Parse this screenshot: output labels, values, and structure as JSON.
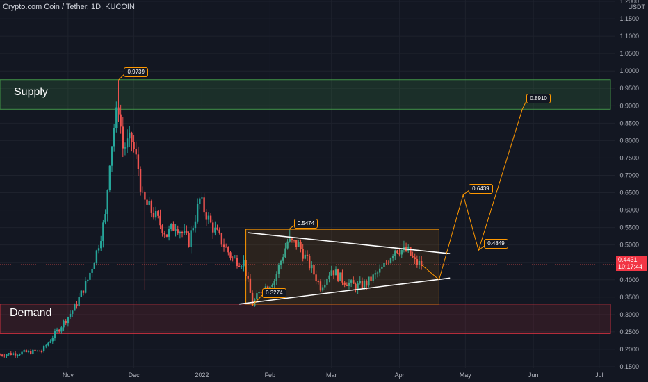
{
  "header": {
    "title": "Crypto.com Coin / Tether, 1D, KUCOIN"
  },
  "axis": {
    "unit": "USDT"
  },
  "zones": {
    "supply_label": "Supply",
    "demand_label": "Demand"
  },
  "price_badge": {
    "price": "0.4431",
    "countdown": "10:17:44",
    "color": "#f23645"
  },
  "colors": {
    "up": "#26a69a",
    "down": "#ef5350",
    "annotation": "#ff9800",
    "supply": "#4caf50",
    "demand": "#f23645",
    "background": "#131722"
  },
  "chart_data": {
    "type": "candlestick",
    "title": "Crypto.com Coin / Tether, 1D, KUCOIN",
    "y_unit": "USDT",
    "ylim": [
      0.13,
      1.22
    ],
    "y_ticks": [
      "1.2000",
      "1.1500",
      "1.1000",
      "1.0500",
      "1.0000",
      "0.9500",
      "0.9000",
      "0.8500",
      "0.8000",
      "0.7500",
      "0.7000",
      "0.6500",
      "0.6000",
      "0.5500",
      "0.5000",
      "0.4500",
      "0.4000",
      "0.3500",
      "0.3000",
      "0.2500",
      "0.2000",
      "0.1500"
    ],
    "x_ticks": [
      "Nov",
      "Dec",
      "2022",
      "Feb",
      "Mar",
      "Apr",
      "May",
      "Jun",
      "Jul"
    ],
    "grid": true,
    "price_path": [
      [
        "2021-10-01",
        0.185
      ],
      [
        "2021-10-20",
        0.195
      ],
      [
        "2021-10-28",
        0.26
      ],
      [
        "2021-11-04",
        0.32
      ],
      [
        "2021-11-10",
        0.4
      ],
      [
        "2021-11-14",
        0.48
      ],
      [
        "2021-11-18",
        0.58
      ],
      [
        "2021-11-20",
        0.75
      ],
      [
        "2021-11-22",
        0.84
      ],
      [
        "2021-11-24",
        0.9
      ],
      [
        "2021-11-26",
        0.78
      ],
      [
        "2021-11-30",
        0.8
      ],
      [
        "2021-12-03",
        0.72
      ],
      [
        "2021-12-05",
        0.63
      ],
      [
        "2021-12-10",
        0.59
      ],
      [
        "2021-12-16",
        0.53
      ],
      [
        "2021-12-20",
        0.56
      ],
      [
        "2021-12-26",
        0.51
      ],
      [
        "2021-12-31",
        0.63
      ],
      [
        "2022-01-05",
        0.56
      ],
      [
        "2022-01-10",
        0.51
      ],
      [
        "2022-01-15",
        0.46
      ],
      [
        "2022-01-20",
        0.45
      ],
      [
        "2022-01-24",
        0.33
      ],
      [
        "2022-01-28",
        0.37
      ],
      [
        "2022-02-03",
        0.4
      ],
      [
        "2022-02-09",
        0.51
      ],
      [
        "2022-02-14",
        0.5
      ],
      [
        "2022-02-20",
        0.43
      ],
      [
        "2022-02-24",
        0.38
      ],
      [
        "2022-03-01",
        0.43
      ],
      [
        "2022-03-06",
        0.4
      ],
      [
        "2022-03-12",
        0.38
      ],
      [
        "2022-03-17",
        0.39
      ],
      [
        "2022-03-24",
        0.43
      ],
      [
        "2022-03-30",
        0.49
      ],
      [
        "2022-04-05",
        0.48
      ],
      [
        "2022-04-08",
        0.45
      ],
      [
        "2022-04-11",
        0.4431
      ]
    ],
    "projection_path": [
      [
        "2022-04-11",
        0.4431
      ],
      [
        "2022-04-19",
        0.4
      ],
      [
        "2022-04-30",
        0.6439
      ],
      [
        "2022-05-07",
        0.4849
      ],
      [
        "2022-05-27",
        0.891
      ]
    ],
    "callouts": [
      {
        "text": "0.9739",
        "date": "2021-11-24",
        "price": 0.9739
      },
      {
        "text": "0.5474",
        "date": "2022-02-10",
        "price": 0.5474
      },
      {
        "text": "0.3274",
        "date": "2022-01-24",
        "price": 0.3274
      },
      {
        "text": "0.6439",
        "date": "2022-04-30",
        "price": 0.6439
      },
      {
        "text": "0.4849",
        "date": "2022-05-07",
        "price": 0.4849
      },
      {
        "text": "0.8910",
        "date": "2022-05-27",
        "price": 0.891
      }
    ],
    "zones": [
      {
        "name": "Supply",
        "from": 0.89,
        "to": 0.975
      },
      {
        "name": "Demand",
        "from": 0.245,
        "to": 0.33
      }
    ],
    "range_box": {
      "from_date": "2022-01-21",
      "to_date": "2022-04-19",
      "low": 0.33,
      "high": 0.545
    },
    "trendlines": [
      {
        "from": [
          "2022-01-22",
          0.535
        ],
        "to": [
          "2022-04-24",
          0.475
        ]
      },
      {
        "from": [
          "2022-01-18",
          0.33
        ],
        "to": [
          "2022-04-24",
          0.405
        ]
      }
    ],
    "last_price": 0.4431
  }
}
